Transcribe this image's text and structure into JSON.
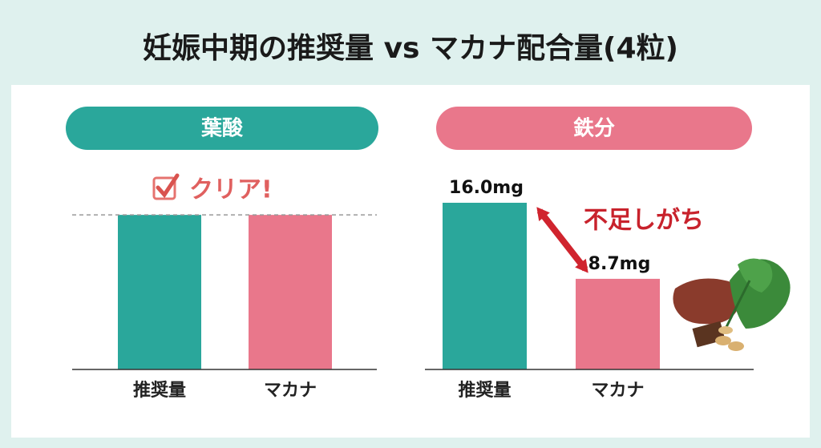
{
  "title": "妊娠中期の推奨量 vs マカナ配合量(4粒)",
  "chart_data": [
    {
      "type": "bar",
      "title": "葉酸",
      "header_color": "#2aa79b",
      "categories": [
        "推奨量",
        "マカナ"
      ],
      "values": [
        480,
        480
      ],
      "colors": [
        "#2aa79b",
        "#e9778b"
      ],
      "ylim": [
        0,
        550
      ],
      "annotation": "クリア!"
    },
    {
      "type": "bar",
      "title": "鉄分",
      "header_color": "#e9778b",
      "categories": [
        "推奨量",
        "マカナ"
      ],
      "values": [
        16.0,
        8.7
      ],
      "value_labels": [
        "16.0mg",
        "8.7mg"
      ],
      "colors": [
        "#2aa79b",
        "#e9778b"
      ],
      "ylim": [
        0,
        17
      ],
      "annotation": "不足しがち"
    }
  ]
}
